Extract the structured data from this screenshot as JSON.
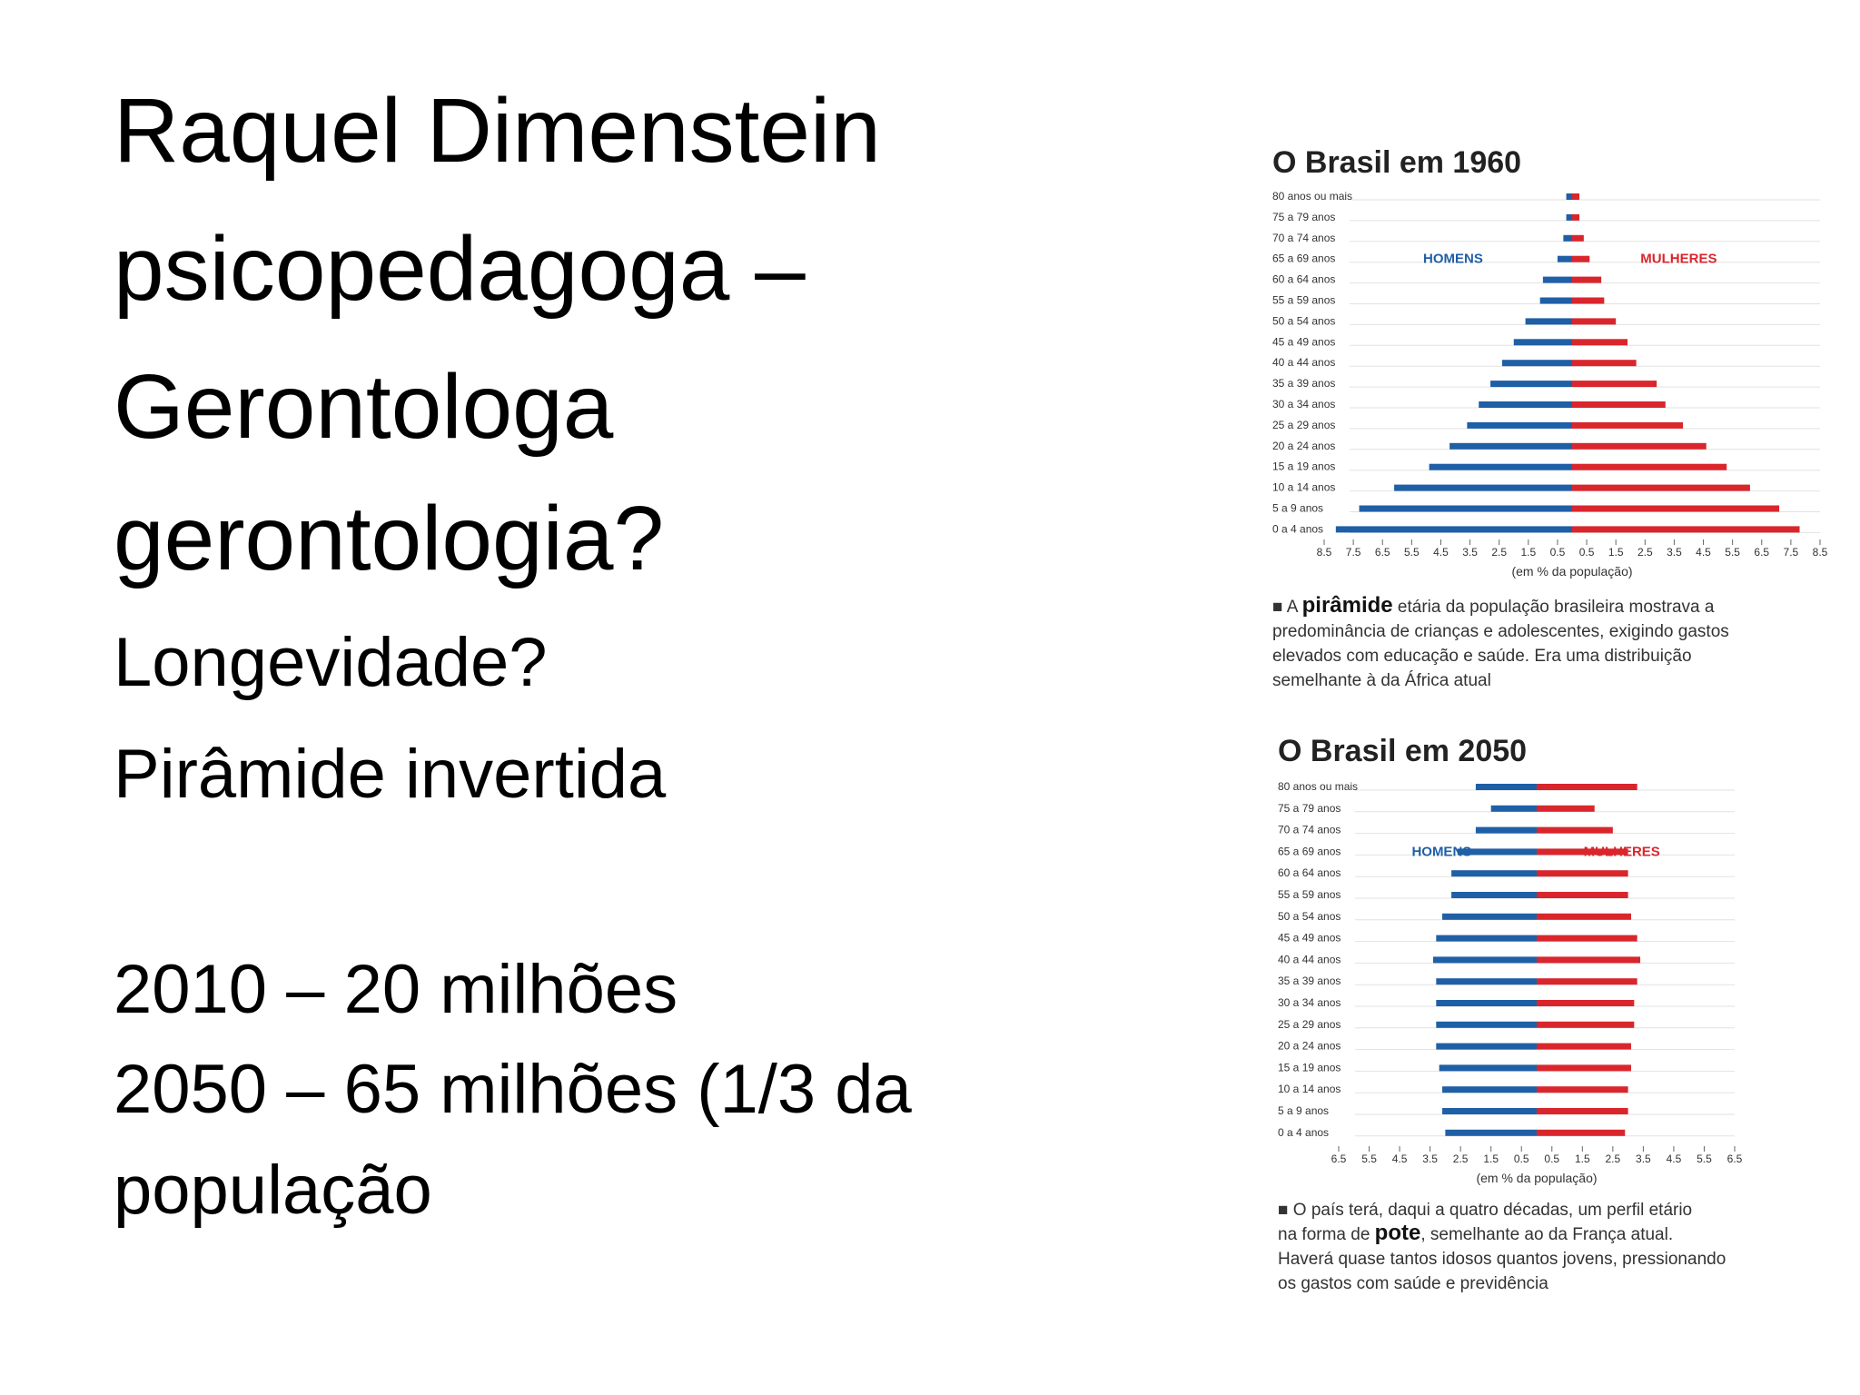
{
  "slide": {
    "lines": [
      "Raquel Dimenstein",
      "psicopedagoga –",
      "Gerontologa",
      "gerontologia?",
      "Longevidade?",
      "Pirâmide invertida",
      "2010 – 20 milhões",
      "2050 – 65 milhões (1/3 da",
      "população"
    ]
  },
  "chart_data": [
    {
      "type": "pyramid",
      "title": "O Brasil em 1960",
      "x_label": "(em % da população)",
      "categories": [
        "80 anos ou mais",
        "75 a 79 anos",
        "70 a 74 anos",
        "65 a 69 anos",
        "60 a 64 anos",
        "55 a 59 anos",
        "50 a 54 anos",
        "45 a 49 anos",
        "40 a 44 anos",
        "35 a 39 anos",
        "30 a 34 anos",
        "25 a 29 anos",
        "20 a 24 anos",
        "15 a 19 anos",
        "10 a 14 anos",
        "5 a 9 anos",
        "0 a 4 anos"
      ],
      "series": [
        {
          "name": "HOMENS",
          "color": "#1f5fa6",
          "values": [
            0.2,
            0.2,
            0.3,
            0.5,
            1.0,
            1.1,
            1.6,
            2.0,
            2.4,
            2.8,
            3.2,
            3.6,
            4.2,
            4.9,
            6.1,
            7.3,
            8.1
          ]
        },
        {
          "name": "MULHERES",
          "color": "#d9262c",
          "values": [
            0.25,
            0.25,
            0.4,
            0.6,
            1.0,
            1.1,
            1.5,
            1.9,
            2.2,
            2.9,
            3.2,
            3.8,
            4.6,
            5.3,
            6.1,
            7.1,
            7.8
          ]
        }
      ],
      "xlim": [
        -8.5,
        8.5
      ],
      "xticks": [
        {
          "value": -8.5,
          "label": "8.5"
        },
        {
          "value": -7.5,
          "label": "7.5"
        },
        {
          "value": -6.5,
          "label": "6.5"
        },
        {
          "value": -5.5,
          "label": "5.5"
        },
        {
          "value": -4.5,
          "label": "4.5"
        },
        {
          "value": -3.5,
          "label": "3.5"
        },
        {
          "value": -2.5,
          "label": "2.5"
        },
        {
          "value": -1.5,
          "label": "1.5"
        },
        {
          "value": -0.5,
          "label": "0.5"
        },
        0.5,
        1.5,
        2.5,
        3.5,
        4.5,
        5.5,
        6.5,
        7.5,
        8.5
      ],
      "caption": [
        [
          {
            "text": "■ A "
          },
          {
            "text": "pirâmide",
            "bold": true
          },
          {
            "text": " etária da população brasileira mostrava a"
          }
        ],
        [
          {
            "text": "predominância de crianças e adolescentes, exigindo gastos"
          }
        ],
        [
          {
            "text": "elevados com educação e saúde. Era uma distribuição"
          }
        ],
        [
          {
            "text": "semelhante à da África atual"
          }
        ]
      ]
    },
    {
      "type": "pyramid",
      "title": "O Brasil em 2050",
      "x_label": "(em % da população)",
      "categories": [
        "80 anos ou mais",
        "75 a 79 anos",
        "70 a 74 anos",
        "65 a 69 anos",
        "60 a 64 anos",
        "55 a 59 anos",
        "50 a 54 anos",
        "45 a 49 anos",
        "40 a 44 anos",
        "35 a 39 anos",
        "30 a 34 anos",
        "25 a 29 anos",
        "20 a 24 anos",
        "15 a 19 anos",
        "10 a 14 anos",
        "5 a 9 anos",
        "0 a 4 anos"
      ],
      "series": [
        {
          "name": "HOMENS",
          "color": "#1f5fa6",
          "values": [
            2.0,
            1.5,
            2.0,
            2.6,
            2.8,
            2.8,
            3.1,
            3.3,
            3.4,
            3.3,
            3.3,
            3.3,
            3.3,
            3.2,
            3.1,
            3.1,
            3.0
          ]
        },
        {
          "name": "MULHERES",
          "color": "#d9262c",
          "values": [
            3.3,
            1.9,
            2.5,
            3.0,
            3.0,
            3.0,
            3.1,
            3.3,
            3.4,
            3.3,
            3.2,
            3.2,
            3.1,
            3.1,
            3.0,
            3.0,
            2.9
          ]
        }
      ],
      "xlim": [
        -6.5,
        6.5
      ],
      "xticks": [
        {
          "value": -6.5,
          "label": "6.5"
        },
        {
          "value": -5.5,
          "label": "5.5"
        },
        {
          "value": -4.5,
          "label": "4.5"
        },
        {
          "value": -3.5,
          "label": "3.5"
        },
        {
          "value": -2.5,
          "label": "2.5"
        },
        {
          "value": -1.5,
          "label": "1.5"
        },
        {
          "value": -0.5,
          "label": "0.5"
        },
        0.5,
        1.5,
        2.5,
        3.5,
        4.5,
        5.5,
        6.5
      ],
      "caption": [
        [
          {
            "text": "■ O país terá, daqui a quatro décadas, um perfil etário"
          }
        ],
        [
          {
            "text": "na forma de "
          },
          {
            "text": "pote",
            "bold": true
          },
          {
            "text": ", semelhante ao da França atual."
          }
        ],
        [
          {
            "text": "Haverá quase tantos idosos quantos jovens, pressionando"
          }
        ],
        [
          {
            "text": "os gastos com saúde e previdência"
          }
        ]
      ]
    }
  ]
}
